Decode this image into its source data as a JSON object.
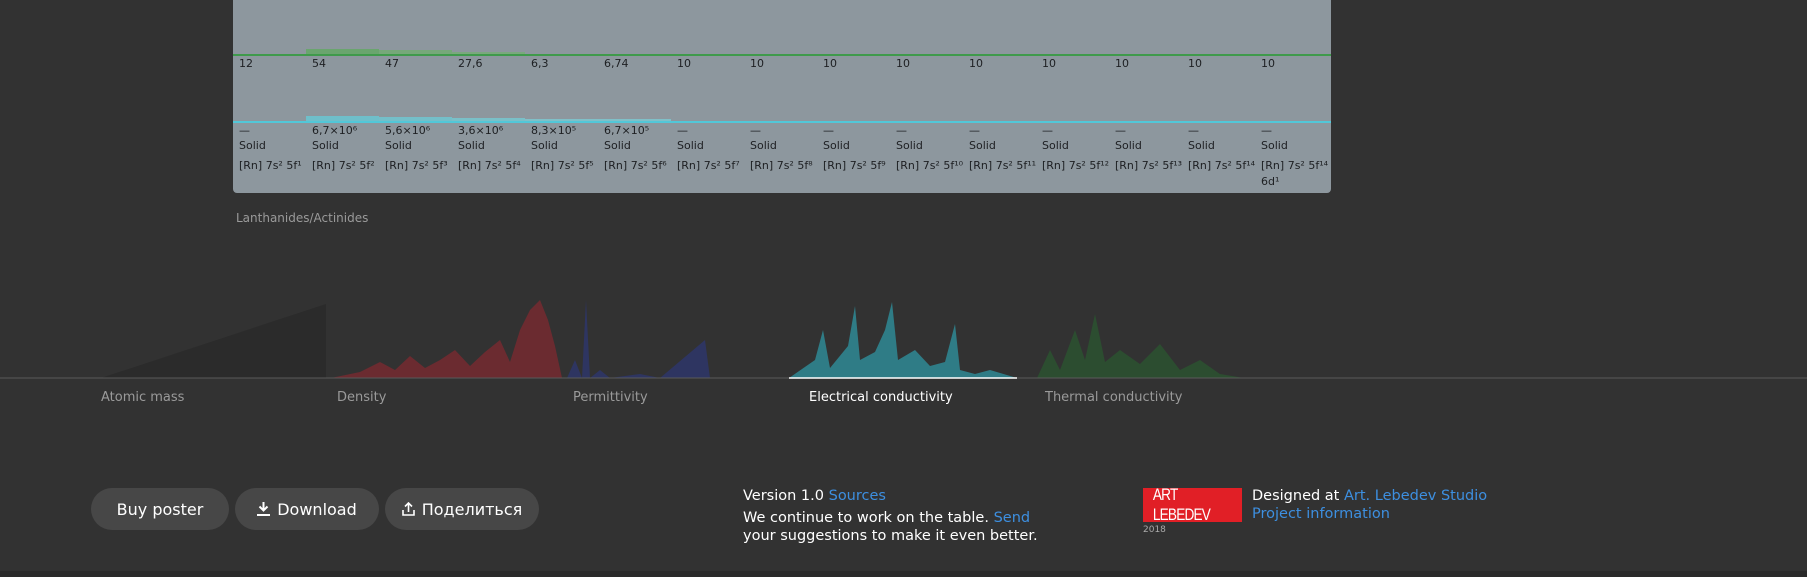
{
  "table": {
    "columns": [
      {
        "value": "12",
        "conductivity": "—",
        "state": "Solid",
        "config": "[Rn] 7s² 5f¹"
      },
      {
        "value": "54",
        "conductivity": "6,7×10⁶",
        "state": "Solid",
        "config": "[Rn] 7s² 5f²"
      },
      {
        "value": "47",
        "conductivity": "5,6×10⁶",
        "state": "Solid",
        "config": "[Rn] 7s² 5f³"
      },
      {
        "value": "27,6",
        "conductivity": "3,6×10⁶",
        "state": "Solid",
        "config": "[Rn] 7s² 5f⁴"
      },
      {
        "value": "6,3",
        "conductivity": "8,3×10⁵",
        "state": "Solid",
        "config": "[Rn] 7s² 5f⁵"
      },
      {
        "value": "6,74",
        "conductivity": "6,7×10⁵",
        "state": "Solid",
        "config": "[Rn] 7s² 5f⁶"
      },
      {
        "value": "10",
        "conductivity": "—",
        "state": "Solid",
        "config": "[Rn] 7s² 5f⁷"
      },
      {
        "value": "10",
        "conductivity": "—",
        "state": "Solid",
        "config": "[Rn] 7s² 5f⁸"
      },
      {
        "value": "10",
        "conductivity": "—",
        "state": "Solid",
        "config": "[Rn] 7s² 5f⁹"
      },
      {
        "value": "10",
        "conductivity": "—",
        "state": "Solid",
        "config": "[Rn] 7s² 5f¹⁰"
      },
      {
        "value": "10",
        "conductivity": "—",
        "state": "Solid",
        "config": "[Rn] 7s² 5f¹¹"
      },
      {
        "value": "10",
        "conductivity": "—",
        "state": "Solid",
        "config": "[Rn] 7s² 5f¹²"
      },
      {
        "value": "10",
        "conductivity": "—",
        "state": "Solid",
        "config": "[Rn] 7s² 5f¹³"
      },
      {
        "value": "10",
        "conductivity": "—",
        "state": "Solid",
        "config": "[Rn] 7s² 5f¹⁴"
      },
      {
        "value": "10",
        "conductivity": "—",
        "state": "Solid",
        "config": "[Rn] 7s² 5f¹⁴ 6d¹"
      }
    ],
    "label": "Lanthanides/Actinides"
  },
  "tabs": {
    "items": [
      "Atomic mass",
      "Density",
      "Permittivity",
      "Electrical conductivity",
      "Thermal conductivity"
    ],
    "active": 3
  },
  "footer": {
    "buttons": [
      "Buy poster",
      "Download",
      "Поделиться"
    ],
    "version": "Version 1.0",
    "sources": "Sources",
    "message": "We continue to work on the table.",
    "send": "Send",
    "message2": "your suggestions to make it even better.",
    "logo": "ART LEBEDEV",
    "year": "2018",
    "designed": "Designed at",
    "studio": "Art. Lebedev Studio",
    "project": "Project information"
  }
}
